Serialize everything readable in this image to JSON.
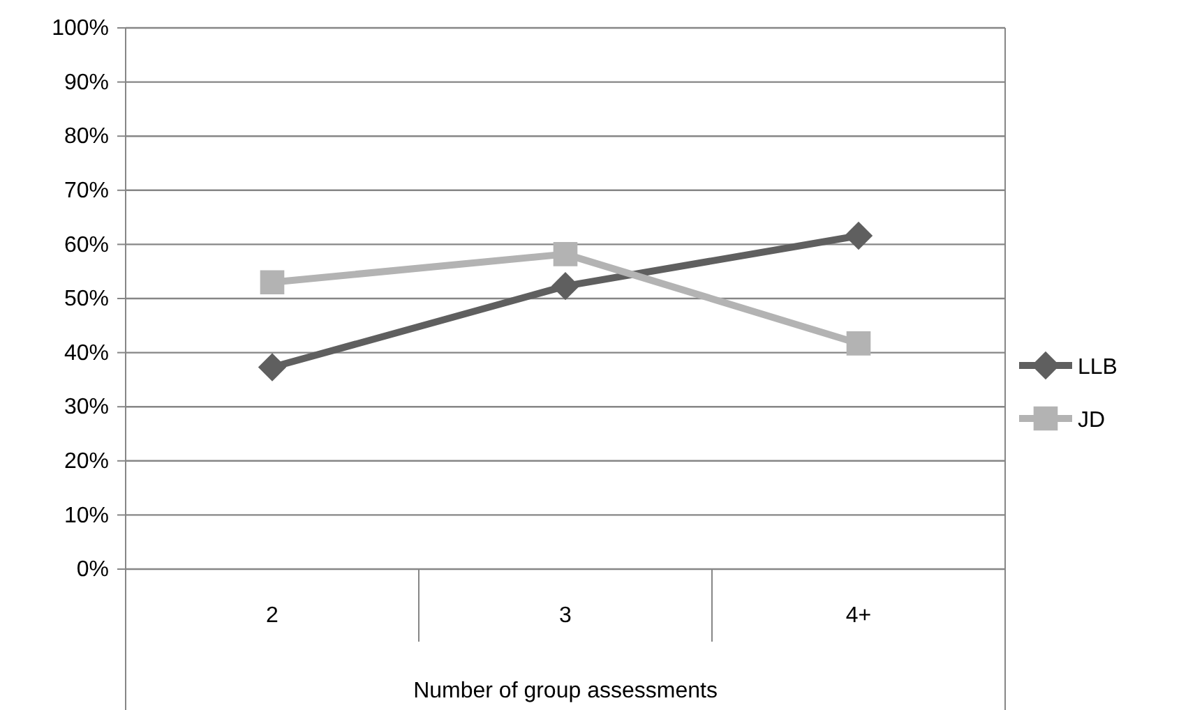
{
  "chart_data": {
    "type": "line",
    "xlabel": "Number of group assessments",
    "categories": [
      "2",
      "3",
      "4+"
    ],
    "series": [
      {
        "name": "LLB",
        "color": "#5f5f5f",
        "marker": "diamond",
        "values": [
          37.3,
          52.3,
          61.6
        ]
      },
      {
        "name": "JD",
        "color": "#b3b3b3",
        "marker": "square",
        "values": [
          53,
          58.2,
          41.7
        ]
      }
    ],
    "ylim": [
      0,
      100
    ],
    "yticks": [
      {
        "value": 0,
        "label": "0%"
      },
      {
        "value": 10,
        "label": "10%"
      },
      {
        "value": 20,
        "label": "20%"
      },
      {
        "value": 30,
        "label": "30%"
      },
      {
        "value": 40,
        "label": "40%"
      },
      {
        "value": 50,
        "label": "50%"
      },
      {
        "value": 60,
        "label": "60%"
      },
      {
        "value": 70,
        "label": "70%"
      },
      {
        "value": 80,
        "label": "80%"
      },
      {
        "value": 90,
        "label": "90%"
      },
      {
        "value": 100,
        "label": "100%"
      }
    ],
    "grid": "y",
    "legend": "right",
    "line_style": "solid"
  }
}
